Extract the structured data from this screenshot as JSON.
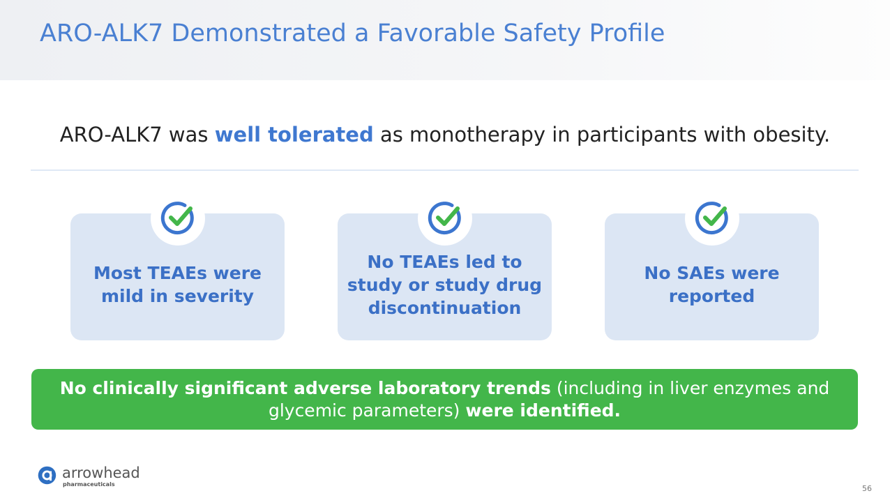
{
  "header": {
    "title": "ARO-ALK7 Demonstrated a Favorable Safety Profile"
  },
  "summary": {
    "runs": [
      {
        "text": "ARO-ALK7 was ",
        "emphasis": false
      },
      {
        "text": "well tolerated",
        "emphasis": true
      },
      {
        "text": " as monotherapy in participants with obesity.",
        "emphasis": false
      }
    ]
  },
  "cards": [
    {
      "lines": [
        "Most TEAEs were",
        "mild in severity"
      ]
    },
    {
      "lines": [
        "No TEAEs led to",
        "study or study drug",
        "discontinuation"
      ]
    },
    {
      "lines": [
        "No SAEs were",
        "reported"
      ]
    }
  ],
  "banner": {
    "runs": [
      {
        "text": "No clinically significant adverse laboratory trends",
        "emphasis": true
      },
      {
        "text": " (including in liver enzymes and glycemic parameters) ",
        "emphasis": false
      },
      {
        "text": "were identified.",
        "emphasis": true
      }
    ]
  },
  "footer": {
    "logo_name": "arrowhead",
    "logo_sub": "pharmaceuticals",
    "page_number": "56"
  }
}
